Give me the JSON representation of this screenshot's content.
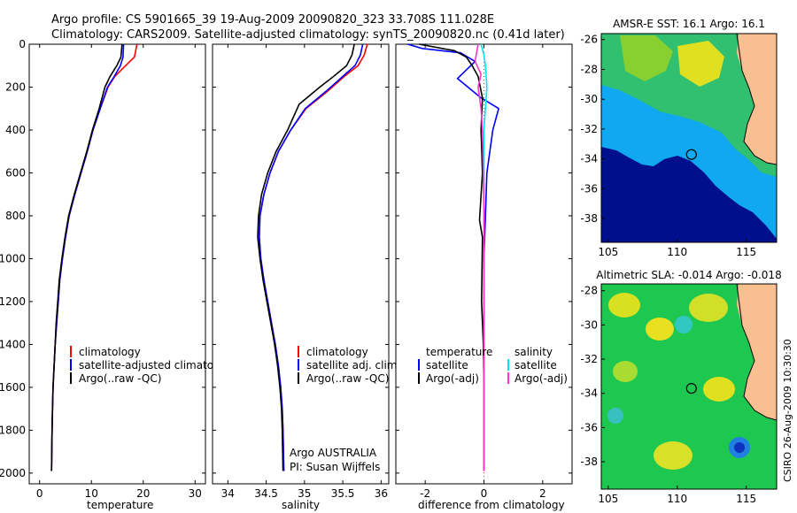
{
  "header": {
    "line1": "Argo profile: CS 5901665_39 19-Aug-2009 20090820_323 33.708S 111.028E",
    "line2": "Climatology: CARS2009. Satellite-adjusted climatology: synTS_20090820.nc (0.41d later)"
  },
  "colors": {
    "climatology": "#ff0000",
    "satellite": "#0000ff",
    "argo": "#000000",
    "sal_satellite": "#00e5ee",
    "sal_argo": "#ff33cc",
    "land": "#f8c090",
    "deep_water": "#00108c"
  },
  "credits": {
    "argo_org": "Argo AUSTRALIA",
    "pi": "PI: Susan Wijffels",
    "csiro": "CSIRO 26-Aug-2009 10:30:30"
  },
  "chart_data": [
    {
      "id": "temperature",
      "type": "line",
      "xlabel": "temperature",
      "ylabel": "",
      "xlim": [
        -2,
        32
      ],
      "ylim": [
        2050,
        0
      ],
      "xticks": [
        0,
        10,
        20,
        30
      ],
      "yticks": [
        0,
        200,
        400,
        600,
        800,
        1000,
        1200,
        1400,
        1600,
        1800,
        2000
      ],
      "legend": [
        "climatology",
        "satellite-adjusted climatology",
        "Argo(..raw -QC)"
      ],
      "series": [
        {
          "name": "climatology",
          "color": "#ff0000",
          "x": [
            18.8,
            18.3,
            16.6,
            14.5,
            13.2,
            11.7,
            10.3,
            9.2,
            8.0,
            6.8,
            5.7,
            5.0,
            4.4,
            3.9,
            3.6,
            3.3,
            3.0,
            2.8,
            2.6,
            2.5,
            2.4,
            2.3
          ],
          "y": [
            0,
            60,
            100,
            150,
            200,
            300,
            400,
            500,
            600,
            700,
            800,
            900,
            1000,
            1100,
            1200,
            1300,
            1400,
            1500,
            1600,
            1700,
            1800,
            1990
          ]
        },
        {
          "name": "satellite-adjusted climatology",
          "color": "#0000ff",
          "x": [
            16.2,
            16.1,
            15.6,
            14.4,
            13.1,
            11.7,
            10.3,
            9.2,
            8.0,
            6.8,
            5.7,
            5.0,
            4.4,
            3.9,
            3.6,
            3.3,
            3.0,
            2.8,
            2.6,
            2.5,
            2.4,
            2.3
          ],
          "y": [
            0,
            60,
            100,
            150,
            200,
            300,
            400,
            500,
            600,
            700,
            800,
            900,
            1000,
            1100,
            1200,
            1300,
            1400,
            1500,
            1600,
            1700,
            1800,
            1990
          ]
        },
        {
          "name": "Argo(..raw -QC)",
          "color": "#000000",
          "x": [
            15.9,
            15.7,
            14.9,
            13.6,
            12.6,
            11.5,
            10.2,
            9.1,
            7.9,
            6.7,
            5.6,
            4.9,
            4.3,
            3.8,
            3.5,
            3.2,
            3.0,
            2.8,
            2.6,
            2.5,
            2.4,
            2.3
          ],
          "y": [
            0,
            60,
            100,
            150,
            200,
            300,
            400,
            500,
            600,
            700,
            800,
            900,
            1000,
            1100,
            1200,
            1300,
            1400,
            1500,
            1600,
            1700,
            1800,
            1990
          ]
        }
      ]
    },
    {
      "id": "salinity",
      "type": "line",
      "xlabel": "salinity",
      "ylabel": "",
      "xlim": [
        33.8,
        36.1
      ],
      "ylim": [
        2050,
        0
      ],
      "xticks": [
        34,
        34.5,
        35,
        35.5,
        36
      ],
      "yticks": [
        0,
        200,
        400,
        600,
        800,
        1000,
        1200,
        1400,
        1600,
        1800,
        2000
      ],
      "legend": [
        "climatology",
        "satellite adj. clim.",
        "Argo(..raw -QC)"
      ],
      "series": [
        {
          "name": "climatology",
          "color": "#ff0000",
          "x": [
            35.82,
            35.78,
            35.7,
            35.52,
            35.3,
            35.02,
            34.82,
            34.66,
            34.55,
            34.47,
            34.42,
            34.41,
            34.43,
            34.47,
            34.52,
            34.57,
            34.62,
            34.66,
            34.69,
            34.71,
            34.72,
            34.73
          ],
          "y": [
            0,
            50,
            100,
            150,
            220,
            300,
            400,
            500,
            600,
            700,
            800,
            900,
            1000,
            1100,
            1200,
            1300,
            1400,
            1500,
            1600,
            1700,
            1800,
            1990
          ]
        },
        {
          "name": "satellite adj. clim.",
          "color": "#0000ff",
          "x": [
            35.76,
            35.73,
            35.66,
            35.5,
            35.28,
            35.01,
            34.82,
            34.66,
            34.55,
            34.47,
            34.42,
            34.41,
            34.43,
            34.47,
            34.52,
            34.57,
            34.62,
            34.66,
            34.69,
            34.71,
            34.72,
            34.73
          ],
          "y": [
            0,
            50,
            100,
            150,
            220,
            300,
            400,
            500,
            600,
            700,
            800,
            900,
            1000,
            1100,
            1200,
            1300,
            1400,
            1500,
            1600,
            1700,
            1800,
            1990
          ]
        },
        {
          "name": "Argo(..raw -QC)",
          "color": "#000000",
          "x": [
            35.65,
            35.62,
            35.55,
            35.38,
            35.2,
            34.93,
            34.78,
            34.63,
            34.52,
            34.44,
            34.4,
            34.39,
            34.42,
            34.46,
            34.51,
            34.56,
            34.61,
            34.65,
            34.68,
            34.7,
            34.71,
            34.72
          ],
          "y": [
            0,
            50,
            100,
            150,
            200,
            280,
            400,
            500,
            600,
            700,
            800,
            900,
            1000,
            1100,
            1200,
            1300,
            1400,
            1500,
            1600,
            1700,
            1800,
            1990
          ]
        }
      ]
    },
    {
      "id": "difference",
      "type": "line",
      "xlabel": "difference from climatology",
      "ylabel": "",
      "xlim": [
        -3,
        3
      ],
      "ylim": [
        2050,
        0
      ],
      "xticks": [
        -2,
        0,
        2
      ],
      "yticks": [
        0,
        200,
        400,
        600,
        800,
        1000,
        1200,
        1400,
        1600,
        1800,
        2000
      ],
      "legend_left_title": "temperature",
      "legend_right_title": "salinity",
      "legend": [
        "satellite",
        "Argo(-adj)",
        "satellite",
        "Argo(-adj)"
      ],
      "series": [
        {
          "name": "satellite",
          "group": "temperature",
          "color": "#0000ff",
          "x": [
            -2.6,
            -2.1,
            -0.8,
            -0.3,
            -0.9,
            -0.1,
            0.5,
            0.3,
            0.1,
            0.05,
            0.0,
            0.0,
            0.0,
            0.0,
            0.0,
            0.0,
            0.0
          ],
          "y": [
            0,
            20,
            40,
            80,
            160,
            250,
            300,
            400,
            600,
            800,
            1000,
            1200,
            1400,
            1600,
            1800,
            1950,
            1990
          ]
        },
        {
          "name": "Argo(-adj)",
          "group": "temperature",
          "color": "#000000",
          "x": [
            -2.2,
            -1.0,
            -0.6,
            -0.4,
            -0.2,
            -0.05,
            -0.1,
            -0.05,
            -0.15,
            -0.05,
            -0.08,
            -0.02,
            0.0,
            0.0,
            0.0
          ],
          "y": [
            0,
            30,
            60,
            100,
            150,
            250,
            400,
            600,
            820,
            900,
            1200,
            1400,
            1600,
            1800,
            1990
          ]
        },
        {
          "name": "satellite",
          "group": "salinity",
          "color": "#00e5ee",
          "x": [
            -0.1,
            0.0,
            0.05,
            0.1,
            0.05,
            0.0,
            0.0,
            0.0,
            0.0,
            0.0,
            0.0,
            0.0
          ],
          "y": [
            0,
            50,
            100,
            200,
            300,
            400,
            600,
            800,
            1000,
            1400,
            1800,
            1990
          ]
        },
        {
          "name": "Argo(-adj)",
          "group": "salinity",
          "color": "#ff33cc",
          "x": [
            -0.2,
            -0.3,
            -0.1,
            -0.2,
            -0.1,
            -0.05,
            -0.02,
            0.0,
            0.0,
            0.0,
            0.0,
            0.0
          ],
          "y": [
            0,
            80,
            140,
            200,
            300,
            400,
            600,
            800,
            1000,
            1400,
            1800,
            1990
          ]
        }
      ]
    },
    {
      "id": "sst-map",
      "type": "heatmap",
      "title": "AMSR-E SST: 16.1  Argo: 16.1",
      "xlim": [
        104.5,
        117.2
      ],
      "ylim": [
        -39.6,
        -25.6
      ],
      "xticks": [
        105,
        110,
        115
      ],
      "yticks": [
        -26,
        -28,
        -30,
        -32,
        -34,
        -36,
        -38
      ],
      "float_position": [
        111.028,
        -33.708
      ]
    },
    {
      "id": "sla-map",
      "type": "heatmap",
      "title": "Altimetric SLA: -0.014  Argo: -0.018",
      "xlim": [
        104.5,
        117.2
      ],
      "ylim": [
        -39.6,
        -27.6
      ],
      "xticks": [
        105,
        110,
        115
      ],
      "yticks": [
        -28,
        -30,
        -32,
        -34,
        -36,
        -38
      ],
      "float_position": [
        111.028,
        -33.708
      ]
    }
  ]
}
